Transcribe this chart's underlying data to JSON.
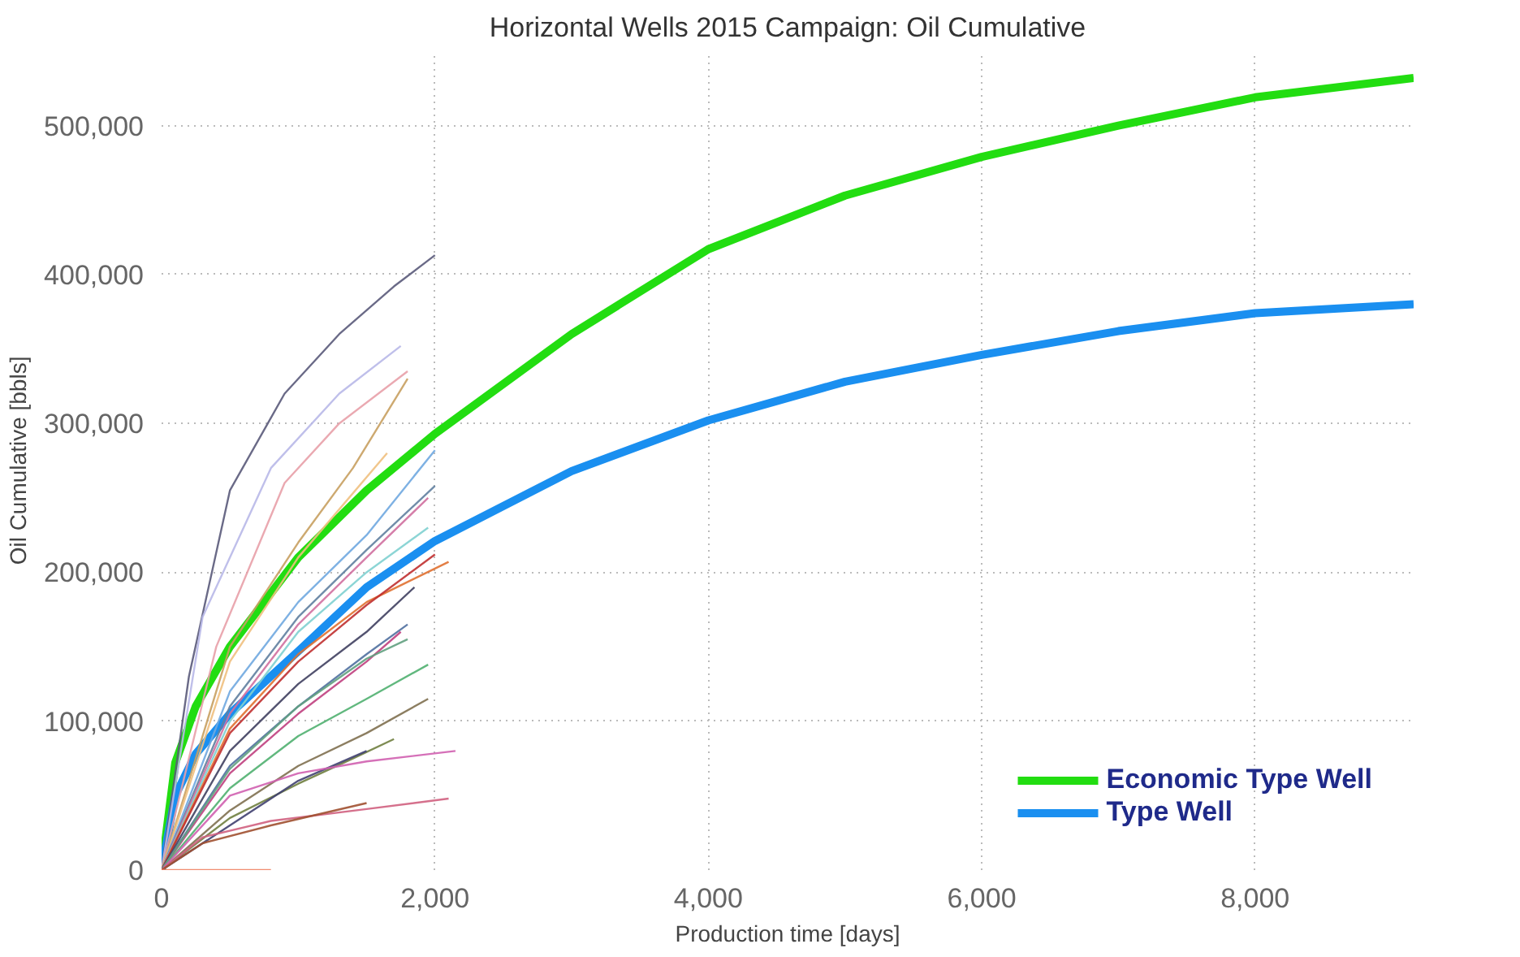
{
  "chart_data": {
    "type": "line",
    "title": "Horizontal Wells 2015 Campaign: Oil Cumulative",
    "xlabel": "Production time [days]",
    "ylabel": "Oil Cumulative [bbls]",
    "xlim": [
      0,
      9160
    ],
    "ylim": [
      0,
      550000
    ],
    "xticks": [
      {
        "value": 0,
        "label": "0"
      },
      {
        "value": 2000,
        "label": "2,000"
      },
      {
        "value": 4000,
        "label": "4,000"
      },
      {
        "value": 6000,
        "label": "6,000"
      },
      {
        "value": 8000,
        "label": "8,000"
      }
    ],
    "yticks": [
      {
        "value": 0,
        "label": "0"
      },
      {
        "value": 100000,
        "label": "100,000"
      },
      {
        "value": 200000,
        "label": "200,000"
      },
      {
        "value": 300000,
        "label": "300,000"
      },
      {
        "value": 400000,
        "label": "400,000"
      },
      {
        "value": 500000,
        "label": "500,000"
      }
    ],
    "grid": true,
    "legend": "bottom right",
    "line_style": "solid",
    "marker": "none",
    "series": [
      {
        "color": "#5a5a7a",
        "x": [
          0,
          200,
          500,
          900,
          1300,
          1700,
          2000
        ],
        "values": [
          0,
          130000,
          255000,
          320000,
          360000,
          392000,
          413000
        ]
      },
      {
        "color": "#b8b8e8",
        "x": [
          0,
          300,
          800,
          1300,
          1750
        ],
        "values": [
          0,
          170000,
          270000,
          320000,
          352000
        ]
      },
      {
        "color": "#e8a0a8",
        "x": [
          0,
          400,
          900,
          1300,
          1800
        ],
        "values": [
          0,
          150000,
          260000,
          300000,
          335000
        ]
      },
      {
        "color": "#c8a060",
        "x": [
          0,
          500,
          1000,
          1400,
          1800
        ],
        "values": [
          0,
          150000,
          220000,
          270000,
          330000
        ]
      },
      {
        "color": "#f0c080",
        "x": [
          0,
          500,
          1000,
          1650
        ],
        "values": [
          0,
          140000,
          210000,
          280000
        ]
      },
      {
        "color": "#70a8e0",
        "x": [
          0,
          500,
          1000,
          1500,
          2000
        ],
        "values": [
          0,
          120000,
          180000,
          225000,
          282000
        ]
      },
      {
        "color": "#6080a0",
        "x": [
          0,
          500,
          1000,
          1500,
          2000
        ],
        "values": [
          0,
          110000,
          170000,
          215000,
          258000
        ]
      },
      {
        "color": "#d070a0",
        "x": [
          0,
          500,
          1000,
          1500,
          1950
        ],
        "values": [
          0,
          105000,
          165000,
          210000,
          250000
        ]
      },
      {
        "color": "#80d0d0",
        "x": [
          0,
          500,
          1000,
          1500,
          1950
        ],
        "values": [
          0,
          100000,
          160000,
          200000,
          230000
        ]
      },
      {
        "color": "#e07030",
        "x": [
          0,
          500,
          1000,
          1500,
          2100
        ],
        "values": [
          0,
          95000,
          145000,
          180000,
          207000
        ]
      },
      {
        "color": "#c03030",
        "x": [
          0,
          500,
          1000,
          1500,
          2000
        ],
        "values": [
          0,
          92000,
          140000,
          178000,
          212000
        ]
      },
      {
        "color": "#404060",
        "x": [
          0,
          500,
          1000,
          1500,
          1850
        ],
        "values": [
          0,
          80000,
          125000,
          160000,
          190000
        ]
      },
      {
        "color": "#5070a0",
        "x": [
          0,
          500,
          1000,
          1500,
          1800
        ],
        "values": [
          0,
          70000,
          110000,
          145000,
          165000
        ]
      },
      {
        "color": "#c04080",
        "x": [
          0,
          500,
          1000,
          1500,
          1750
        ],
        "values": [
          0,
          65000,
          105000,
          140000,
          160000
        ]
      },
      {
        "color": "#60a080",
        "x": [
          0,
          500,
          1000,
          1500,
          1800
        ],
        "values": [
          0,
          68000,
          110000,
          142000,
          155000
        ]
      },
      {
        "color": "#50b070",
        "x": [
          0,
          500,
          1000,
          1500,
          1950
        ],
        "values": [
          0,
          55000,
          90000,
          115000,
          138000
        ]
      },
      {
        "color": "#807050",
        "x": [
          0,
          500,
          1000,
          1500,
          1950
        ],
        "values": [
          0,
          40000,
          70000,
          92000,
          115000
        ]
      },
      {
        "color": "#708040",
        "x": [
          0,
          500,
          1000,
          1400,
          1700
        ],
        "values": [
          0,
          35000,
          58000,
          75000,
          88000
        ]
      },
      {
        "color": "#404070",
        "x": [
          0,
          500,
          1000,
          1500
        ],
        "values": [
          0,
          30000,
          60000,
          80000
        ]
      },
      {
        "color": "#d060b0",
        "x": [
          0,
          500,
          1000,
          1500,
          2150
        ],
        "values": [
          0,
          50000,
          65000,
          73000,
          80000
        ]
      },
      {
        "color": "#d06080",
        "x": [
          0,
          300,
          800,
          1500,
          2100
        ],
        "values": [
          0,
          22000,
          33000,
          41000,
          48000
        ]
      },
      {
        "color": "#a05030",
        "x": [
          0,
          300,
          800,
          1500
        ],
        "values": [
          0,
          18000,
          30000,
          45000
        ]
      },
      {
        "color": "#f08060",
        "x": [
          0,
          800
        ],
        "values": [
          0,
          0
        ]
      },
      {
        "name": "Economic Type Well",
        "color": "#22dd11",
        "x": [
          0,
          100,
          250,
          500,
          1000,
          1500,
          2000,
          3000,
          4000,
          5000,
          6000,
          7000,
          8000,
          9160
        ],
        "values": [
          0,
          72000,
          110000,
          150000,
          210000,
          255000,
          293000,
          360000,
          417000,
          453000,
          479000,
          500000,
          519000,
          532000
        ]
      },
      {
        "name": "Type Well",
        "color": "#1a8ff0",
        "x": [
          0,
          100,
          250,
          500,
          1000,
          1500,
          2000,
          3000,
          4000,
          5000,
          6000,
          7000,
          8000,
          9160
        ],
        "values": [
          0,
          50000,
          78000,
          105000,
          147000,
          190000,
          221000,
          268000,
          302000,
          328000,
          346000,
          362000,
          374000,
          380000
        ]
      }
    ]
  }
}
